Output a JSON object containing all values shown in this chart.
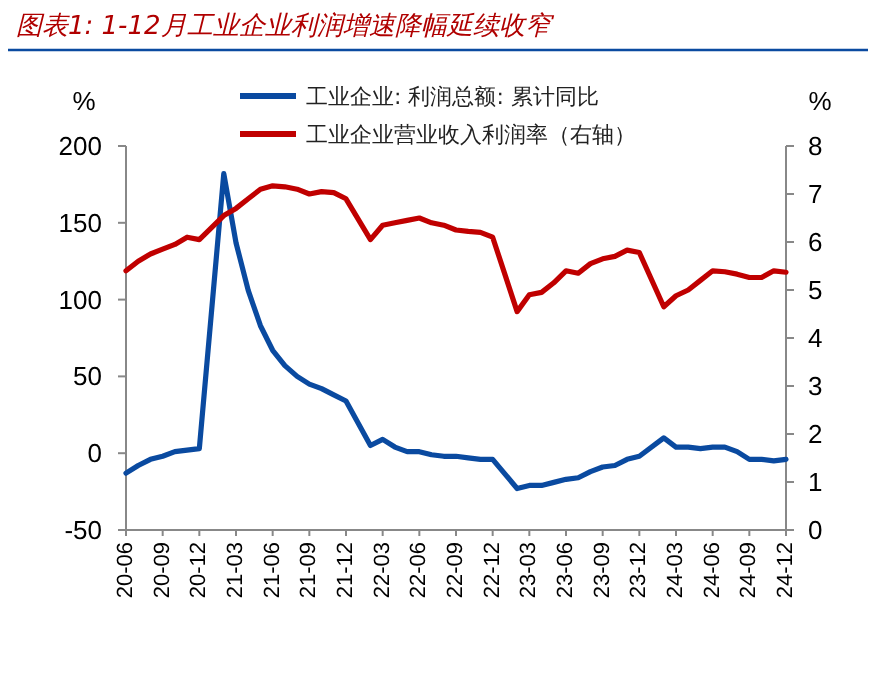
{
  "chart_data": {
    "type": "line",
    "title": "图表1: 1-12月工业企业利润增速降幅延续收窄",
    "ylabel": "%",
    "y2label": "%",
    "categories": [
      "20-06",
      null,
      null,
      "20-09",
      null,
      null,
      "20-12",
      null,
      null,
      "21-03",
      null,
      null,
      "21-06",
      null,
      null,
      "21-09",
      null,
      null,
      "21-12",
      null,
      null,
      "22-03",
      null,
      null,
      "22-06",
      null,
      null,
      "22-09",
      null,
      null,
      "22-12",
      null,
      null,
      "23-03",
      null,
      null,
      "23-06",
      null,
      null,
      "23-09",
      null,
      null,
      "23-12",
      null,
      null,
      "24-03",
      null,
      null,
      "24-06",
      null,
      null,
      "24-09",
      null,
      null,
      "24-12"
    ],
    "ylim": [
      -50,
      200
    ],
    "yticks": [
      -50,
      0,
      50,
      100,
      150,
      200
    ],
    "y2lim": [
      0,
      8
    ],
    "y2ticks": [
      0,
      1,
      2,
      3,
      4,
      5,
      6,
      7,
      8
    ],
    "grid": false,
    "legend": "top",
    "marker": "none",
    "line_style": "solid",
    "series": [
      {
        "name": "工业企业: 利润总额: 累计同比",
        "color": "#0a4aa0",
        "values": [
          -13,
          -8,
          -4,
          -2,
          1,
          2,
          3,
          null,
          182,
          137,
          106,
          83,
          67,
          57,
          50,
          45,
          42,
          38,
          34,
          null,
          5,
          9,
          4,
          1,
          1,
          -1,
          -2,
          -2,
          -3,
          -4,
          -4,
          null,
          -23,
          -21,
          -21,
          -19,
          -17,
          -16,
          -12,
          -9,
          -8,
          -4,
          -2,
          null,
          10,
          4,
          4,
          3,
          4,
          4,
          1,
          -4,
          -4,
          -5,
          -4
        ]
      },
      {
        "name": "工业企业营业收入利润率（右轴）",
        "color": "#c00000",
        "axis": "y2",
        "values": [
          5.4,
          5.6,
          5.75,
          5.85,
          5.95,
          6.1,
          6.05,
          null,
          6.55,
          6.7,
          6.9,
          7.1,
          7.17,
          7.15,
          7.1,
          7.0,
          7.05,
          7.03,
          6.9,
          null,
          6.05,
          6.35,
          6.4,
          6.45,
          6.5,
          6.4,
          6.35,
          6.25,
          6.22,
          6.2,
          6.1,
          null,
          4.55,
          4.9,
          4.95,
          5.15,
          5.4,
          5.35,
          5.55,
          5.65,
          5.7,
          5.83,
          5.78,
          null,
          4.65,
          4.88,
          5.0,
          5.2,
          5.4,
          5.38,
          5.33,
          5.26,
          5.26,
          5.4,
          5.37
        ]
      }
    ]
  }
}
